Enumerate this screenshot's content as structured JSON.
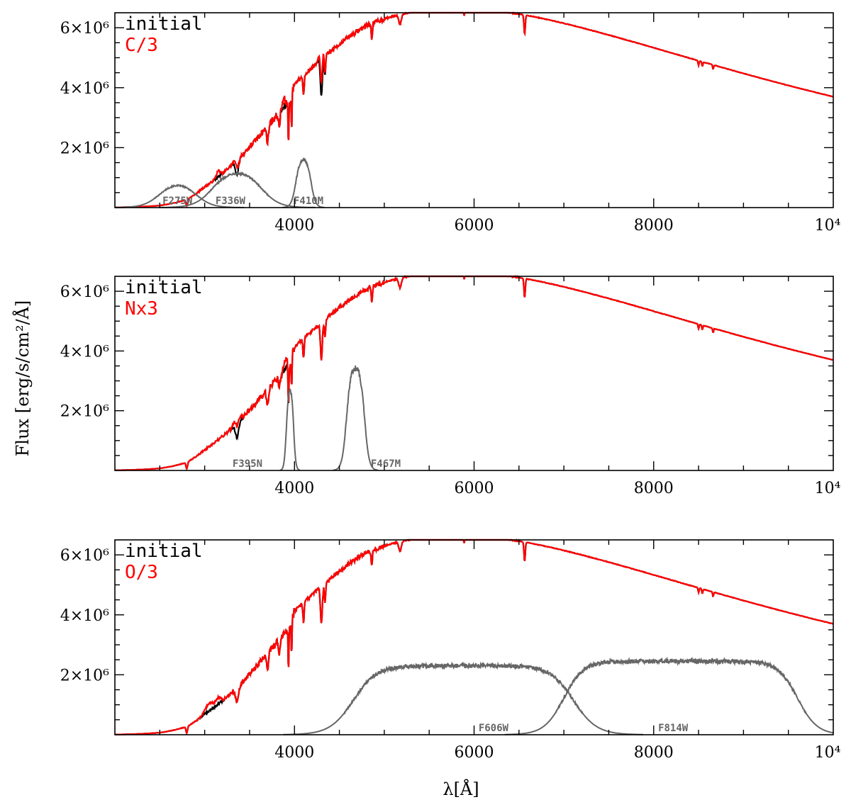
{
  "chart_data": [
    {
      "type": "line",
      "panel": "top",
      "xlim": [
        2000,
        10000
      ],
      "ylim": [
        0,
        6500000
      ],
      "x_ticks": [
        {
          "value": 4000,
          "label": "4000"
        },
        {
          "value": 6000,
          "label": "6000"
        },
        {
          "value": 8000,
          "label": "8000"
        },
        {
          "value": 10000,
          "label": "10⁴"
        }
      ],
      "y_ticks": [
        {
          "value": 2000000,
          "label": "2×10⁶"
        },
        {
          "value": 4000000,
          "label": "4×10⁶"
        },
        {
          "value": 6000000,
          "label": "6×10⁶"
        }
      ],
      "legend": [
        {
          "label": "initial",
          "color": "#000000"
        },
        {
          "label": "C/3",
          "color": "#ff0000"
        }
      ],
      "modified_dips": [
        {
          "x": 3350,
          "depth": 300000,
          "width": 25
        },
        {
          "x": 3880,
          "depth": 300000,
          "width": 20
        },
        {
          "x": 4300,
          "depth": 450000,
          "width": 30
        },
        {
          "x": 3150,
          "depth": 200000,
          "width": 30
        }
      ],
      "filters": [
        {
          "name": "F275W",
          "center": 2700,
          "fwhm": 400,
          "peak": 900000,
          "edge": 90,
          "label_x": 2530
        },
        {
          "name": "F336W",
          "center": 3360,
          "fwhm": 540,
          "peak": 1300000,
          "edge": 100,
          "label_x": 3120
        },
        {
          "name": "F410M",
          "center": 4100,
          "fwhm": 170,
          "peak": 1700000,
          "edge": 25,
          "label_x": 3990
        }
      ]
    },
    {
      "type": "line",
      "panel": "middle",
      "xlim": [
        2000,
        10000
      ],
      "ylim": [
        0,
        6500000
      ],
      "x_ticks": [
        {
          "value": 4000,
          "label": "4000"
        },
        {
          "value": 6000,
          "label": "6000"
        },
        {
          "value": 8000,
          "label": "8000"
        },
        {
          "value": 10000,
          "label": "10⁴"
        }
      ],
      "y_ticks": [
        {
          "value": 2000000,
          "label": "2×10⁶"
        },
        {
          "value": 4000000,
          "label": "4×10⁶"
        },
        {
          "value": 6000000,
          "label": "6×10⁶"
        }
      ],
      "legend": [
        {
          "label": "initial",
          "color": "#000000"
        },
        {
          "label": "Nx3",
          "color": "#ff0000"
        }
      ],
      "modified_dips": [
        {
          "x": 3360,
          "depth": 400000,
          "width": 40
        },
        {
          "x": 3900,
          "depth": 300000,
          "width": 25
        }
      ],
      "filters": [
        {
          "name": "F395N",
          "center": 3950,
          "fwhm": 80,
          "peak": 2900000,
          "edge": 12,
          "label_x": 3310
        },
        {
          "name": "F467M",
          "center": 4680,
          "fwhm": 200,
          "peak": 3550000,
          "edge": 25,
          "label_x": 4850
        }
      ]
    },
    {
      "type": "line",
      "panel": "bottom",
      "xlim": [
        2000,
        10000
      ],
      "ylim": [
        0,
        6500000
      ],
      "x_ticks": [
        {
          "value": 4000,
          "label": "4000"
        },
        {
          "value": 6000,
          "label": "6000"
        },
        {
          "value": 8000,
          "label": "8000"
        },
        {
          "value": 10000,
          "label": "10⁴"
        }
      ],
      "y_ticks": [
        {
          "value": 2000000,
          "label": "2×10⁶"
        },
        {
          "value": 4000000,
          "label": "4×10⁶"
        },
        {
          "value": 6000000,
          "label": "6×10⁶"
        }
      ],
      "legend": [
        {
          "label": "initial",
          "color": "#000000"
        },
        {
          "label": "O/3",
          "color": "#ff0000"
        }
      ],
      "modified_dips": [
        {
          "x": 3050,
          "depth": 250000,
          "width": 60
        },
        {
          "x": 3150,
          "depth": 200000,
          "width": 40
        }
      ],
      "filters": [
        {
          "name": "F606W",
          "center": 5880,
          "fwhm": 2450,
          "peak": 2300000,
          "edge": 130,
          "label_x": 6050
        },
        {
          "name": "F814W",
          "center": 8300,
          "fwhm": 2600,
          "peak": 2450000,
          "edge": 110,
          "label_x": 8050
        }
      ]
    }
  ],
  "axis_labels": {
    "xlabel": "λ[Å]",
    "ylabel": "Flux [erg/s/cm²/Å]"
  },
  "colors": {
    "initial": "#000000",
    "modified": "#ff0000",
    "filter": "#666666"
  }
}
